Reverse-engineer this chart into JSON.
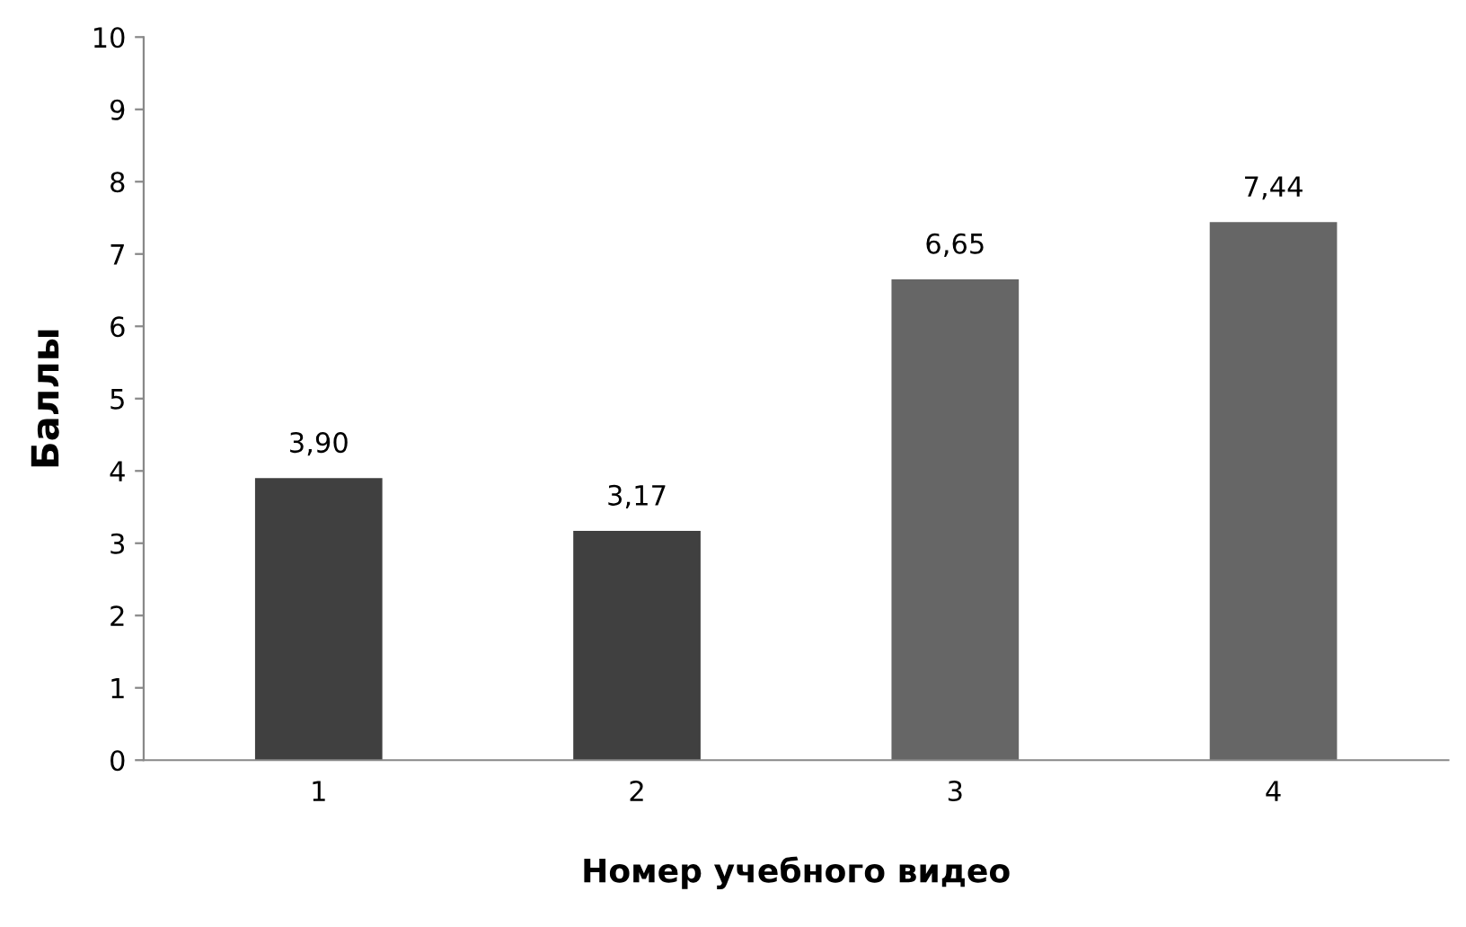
{
  "chart_data": {
    "type": "bar",
    "xlabel": "Номер учебного видео",
    "ylabel": "Баллы",
    "categories": [
      "1",
      "2",
      "3",
      "4"
    ],
    "values": [
      3.9,
      3.17,
      6.65,
      7.44
    ],
    "colors": [
      "#404040",
      "#404040",
      "#666666",
      "#666666"
    ],
    "value_labels": [
      "3,90",
      "3,17",
      "6,65",
      "7,44"
    ],
    "ylim": [
      0,
      10
    ],
    "yticks": [
      0,
      1,
      2,
      3,
      4,
      5,
      6,
      7,
      8,
      9,
      10
    ],
    "grid": false,
    "legend": false
  }
}
